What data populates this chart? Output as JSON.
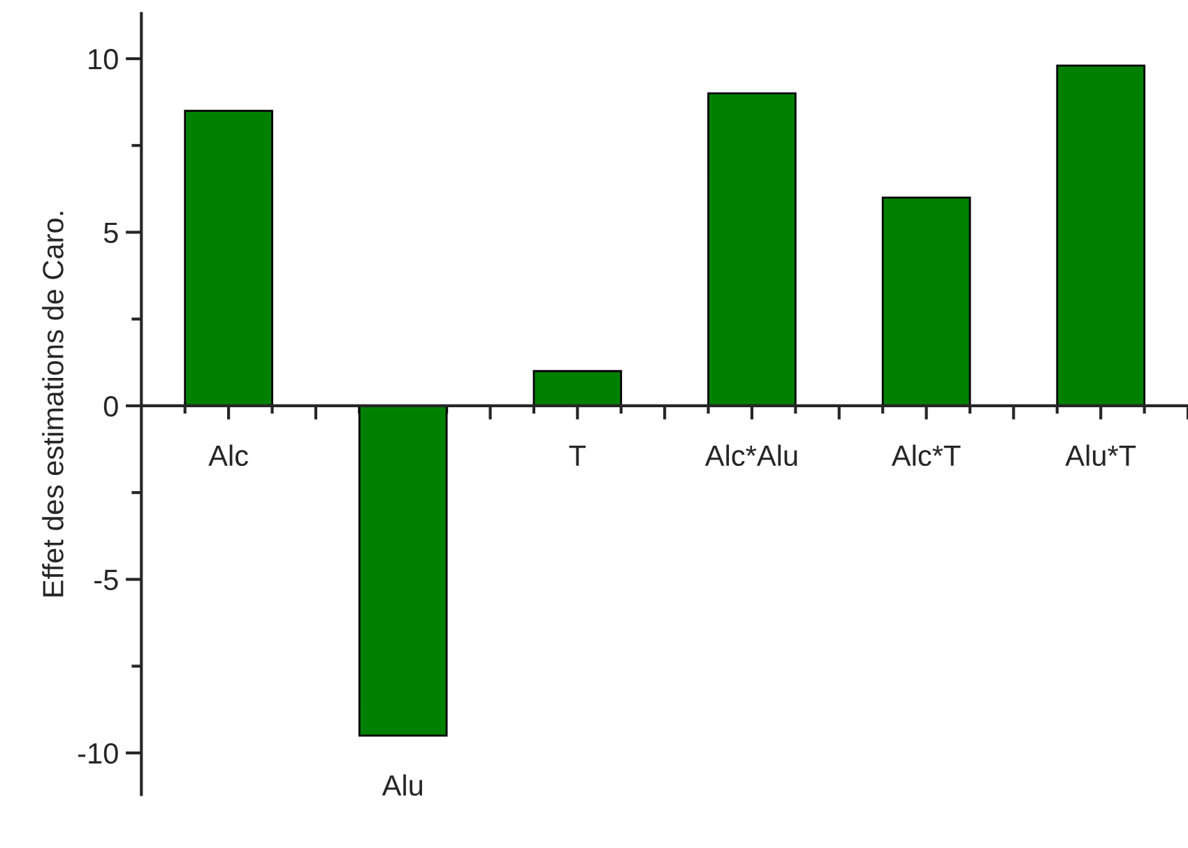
{
  "chart_data": {
    "type": "bar",
    "ylabel": "Effet des estimations de Caro.",
    "categories": [
      "Alc",
      "Alu",
      "T",
      "Alc*Alu",
      "Alc*T",
      "Alu*T"
    ],
    "values": [
      8.5,
      -9.5,
      1.0,
      9.0,
      6.0,
      9.8
    ],
    "color": "#008000",
    "ylim": [
      -11.2,
      11.3
    ],
    "yticks": [
      -10,
      -5,
      0,
      5,
      10
    ],
    "grid": false,
    "legend": false
  }
}
